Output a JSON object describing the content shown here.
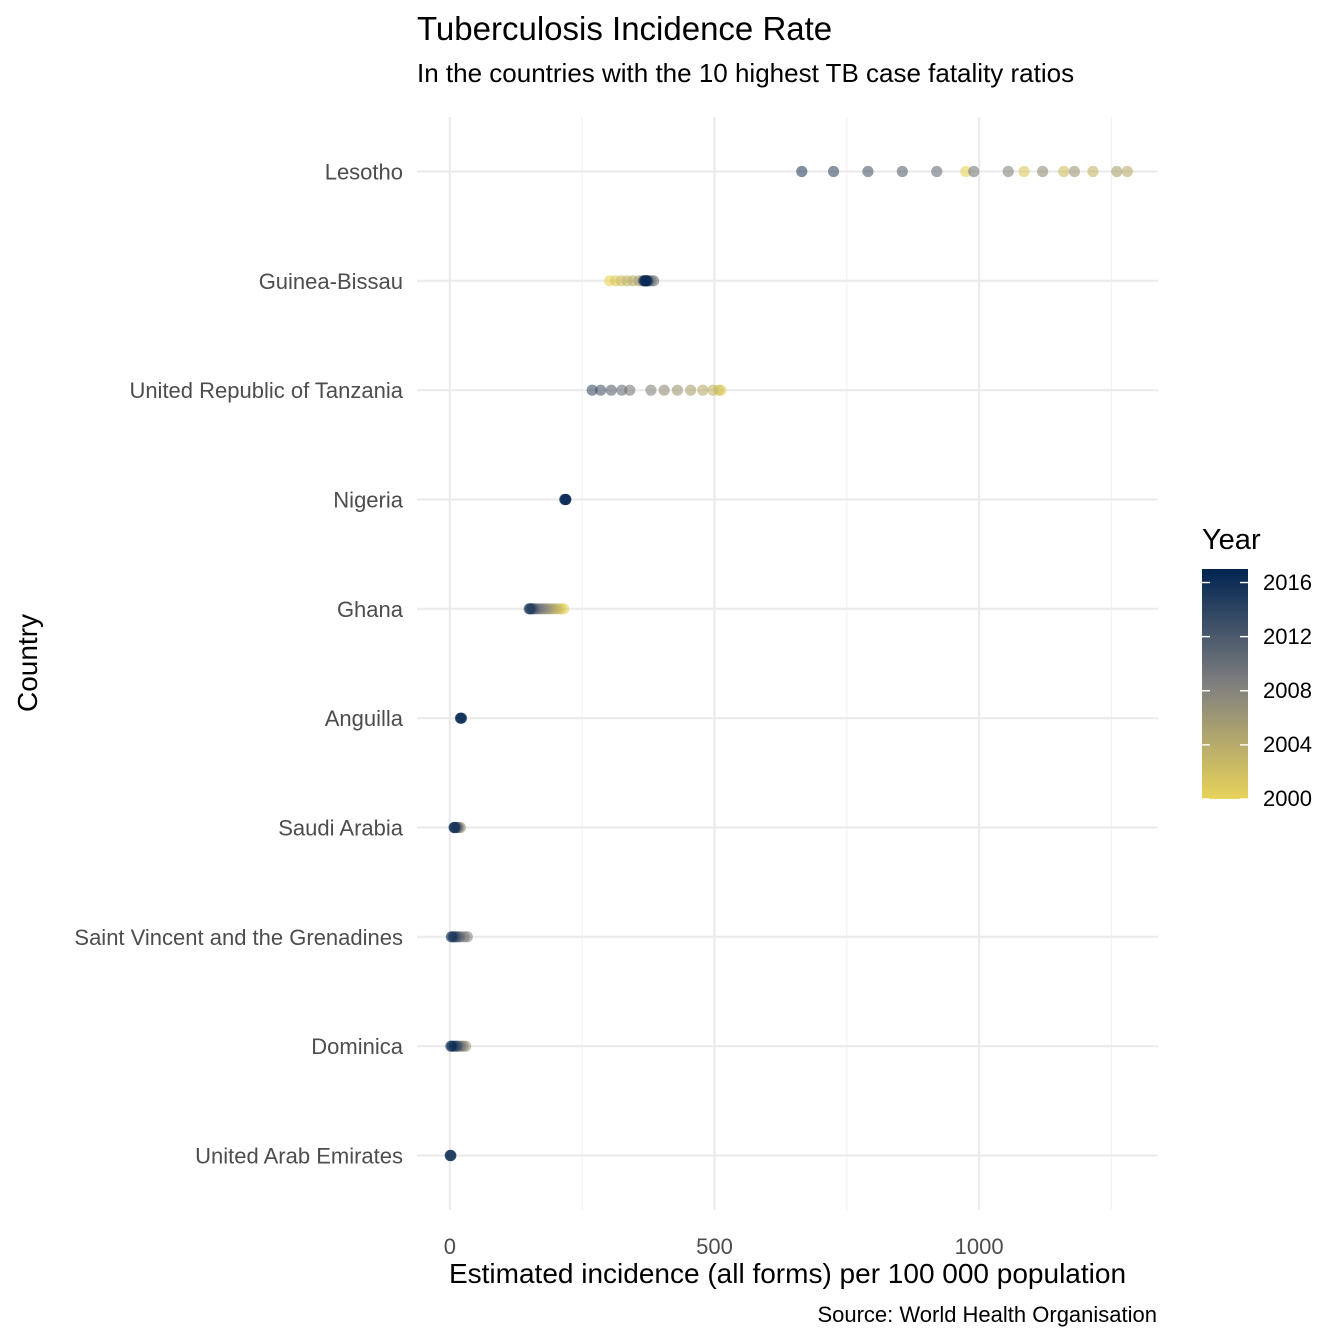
{
  "chart_data": {
    "type": "scatter",
    "title": "Tuberculosis Incidence Rate",
    "subtitle": "In the countries with the 10 highest TB case fatality ratios",
    "caption": "Source: World Health Organisation",
    "xlabel": "Estimated incidence (all forms) per 100 000 population",
    "ylabel": "Country",
    "xlim": [
      -62,
      1338
    ],
    "x_ticks": [
      0,
      500,
      1000
    ],
    "categories": [
      "Lesotho",
      "Guinea-Bissau",
      "United Republic of Tanzania",
      "Nigeria",
      "Ghana",
      "Anguilla",
      "Saudi Arabia",
      "Saint Vincent and the Grenadines",
      "Dominica",
      "United Arab Emirates"
    ],
    "grid": true,
    "legend": {
      "title": "Year",
      "position": "right",
      "type": "colorbar",
      "range": [
        2000,
        2017
      ],
      "ticks": [
        2000,
        2004,
        2008,
        2012,
        2016
      ],
      "low_color": "#E8D35A",
      "mid_color": "#7F7F7F",
      "high_color": "#002451"
    },
    "series": [
      {
        "country": "Lesotho",
        "x": [
          975,
          1085,
          1160,
          1215,
          1280,
          1260,
          1180,
          1120,
          1055,
          990,
          920,
          855,
          790,
          725,
          665
        ],
        "year": [
          2000,
          2001,
          2002,
          2003,
          2004,
          2005,
          2006,
          2007,
          2008,
          2009,
          2010,
          2011,
          2012,
          2013,
          2014
        ]
      },
      {
        "country": "Guinea-Bissau",
        "x": [
          302,
          313,
          324,
          335,
          346,
          357,
          365,
          370,
          375,
          380,
          385,
          372,
          368,
          366,
          370,
          374,
          371,
          369
        ],
        "year": [
          2000,
          2001,
          2002,
          2003,
          2004,
          2005,
          2006,
          2007,
          2008,
          2009,
          2010,
          2011,
          2012,
          2013,
          2014,
          2015,
          2016,
          2017
        ]
      },
      {
        "country": "United Republic of Tanzania",
        "x": [
          512,
          508,
          497,
          478,
          455,
          430,
          405,
          380,
          340,
          325,
          305,
          285,
          269
        ],
        "year": [
          2000,
          2002,
          2003,
          2004,
          2005,
          2006,
          2007,
          2008,
          2009,
          2010,
          2011,
          2012,
          2013
        ]
      },
      {
        "country": "Nigeria",
        "x": [
          217,
          218,
          219,
          219
        ],
        "year": [
          2014,
          2015,
          2016,
          2017
        ]
      },
      {
        "country": "Ghana",
        "x": [
          215,
          210,
          205,
          200,
          195,
          190,
          185,
          180,
          175,
          170,
          165,
          160,
          157,
          154,
          152,
          150
        ],
        "year": [
          2000,
          2001,
          2002,
          2003,
          2004,
          2005,
          2006,
          2007,
          2008,
          2009,
          2010,
          2011,
          2012,
          2013,
          2014,
          2015
        ]
      },
      {
        "country": "Anguilla",
        "x": [
          20,
          21,
          22
        ],
        "year": [
          2015,
          2016,
          2017
        ]
      },
      {
        "country": "Saudi Arabia",
        "x": [
          20,
          17,
          14,
          12,
          10,
          9,
          8
        ],
        "year": [
          2006,
          2008,
          2010,
          2012,
          2014,
          2015,
          2016
        ]
      },
      {
        "country": "Saint Vincent and the Grenadines",
        "x": [
          33,
          27,
          20,
          16,
          12,
          9,
          6,
          3
        ],
        "year": [
          2008,
          2009,
          2010,
          2011,
          2012,
          2013,
          2014,
          2016
        ]
      },
      {
        "country": "Dominica",
        "x": [
          30,
          25,
          20,
          15,
          12,
          9,
          5,
          2
        ],
        "year": [
          2006,
          2008,
          2010,
          2012,
          2013,
          2014,
          2015,
          2017
        ]
      },
      {
        "country": "United Arab Emirates",
        "x": [
          1,
          1,
          2
        ],
        "year": [
          2014,
          2015,
          2016
        ]
      }
    ]
  }
}
